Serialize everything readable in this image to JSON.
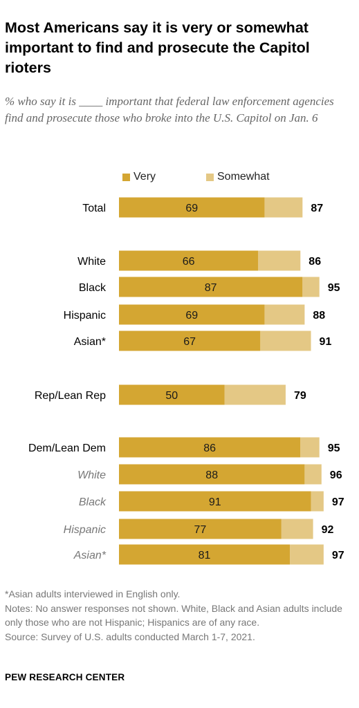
{
  "title": "Most Americans say it is very or somewhat important to find and prosecute the Capitol rioters",
  "subtitle": "% who say it is ____ important that federal law enforcement agencies find and prosecute those who broke into the U.S. Capitol on Jan. 6",
  "colors": {
    "very": "#d4a632",
    "somewhat": "#e4c885",
    "sub_label": "#777777"
  },
  "chart_data": {
    "type": "bar",
    "orientation": "horizontal",
    "stacked": true,
    "xlim": [
      0,
      100
    ],
    "series": [
      {
        "name": "Very",
        "values": [
          69,
          66,
          87,
          69,
          67,
          50,
          86,
          88,
          91,
          77,
          81
        ]
      },
      {
        "name": "Somewhat",
        "values": [
          18,
          20,
          8,
          19,
          24,
          29,
          9,
          8,
          6,
          15,
          16
        ]
      }
    ],
    "totals": [
      87,
      86,
      95,
      88,
      91,
      79,
      95,
      96,
      97,
      92,
      97
    ],
    "categories": [
      "Total",
      "White",
      "Black",
      "Hispanic",
      "Asian*",
      "Rep/Lean Rep",
      "Dem/Lean Dem",
      "White",
      "Black",
      "Hispanic",
      "Asian*"
    ],
    "category_italic": [
      false,
      false,
      false,
      false,
      false,
      false,
      false,
      true,
      true,
      true,
      true
    ],
    "legend_position": "top"
  },
  "notes": {
    "asian": "*Asian adults interviewed in English only.",
    "notes": "Notes: No answer responses not shown. White, Black and Asian adults include only those who are not Hispanic; Hispanics are of any race.",
    "source": "Source: Survey of U.S. adults conducted March 1-7, 2021."
  },
  "org": "PEW RESEARCH CENTER"
}
